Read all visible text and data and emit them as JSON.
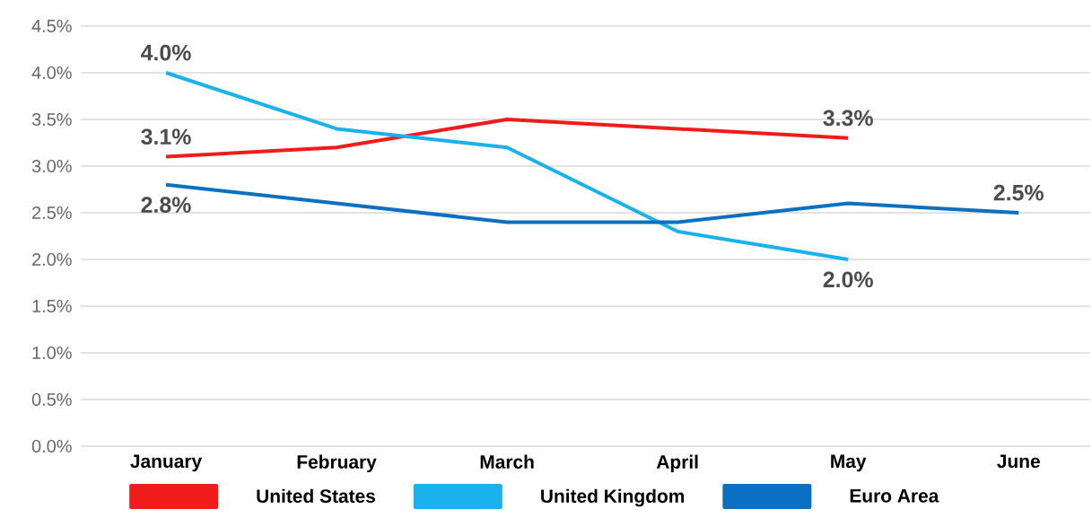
{
  "chart_data": {
    "type": "line",
    "categories": [
      "January",
      "February",
      "March",
      "April",
      "May",
      "June"
    ],
    "series": [
      {
        "name": "United States",
        "color": "#f01c1c",
        "values": [
          3.1,
          3.2,
          3.5,
          3.4,
          3.3,
          null
        ],
        "value_labels": [
          "3.1%",
          null,
          null,
          null,
          "3.3%",
          null
        ]
      },
      {
        "name": "United Kingdom",
        "color": "#1ab2ec",
        "values": [
          4.0,
          3.4,
          3.2,
          2.3,
          2.0,
          null
        ],
        "value_labels": [
          "4.0%",
          null,
          null,
          null,
          "2.0%",
          null
        ]
      },
      {
        "name": "Euro Area",
        "color": "#0b6fc2",
        "values": [
          2.8,
          2.6,
          2.4,
          2.4,
          2.6,
          2.5
        ],
        "value_labels": [
          "2.8%",
          null,
          null,
          null,
          null,
          "2.5%"
        ]
      }
    ],
    "ylim": [
      0,
      4.5
    ],
    "yticks": [
      {
        "value": 0,
        "label": "0.0%"
      },
      {
        "value": 0.5,
        "label": "0.5%"
      },
      {
        "value": 1.0,
        "label": "1.0%"
      },
      {
        "value": 1.5,
        "label": "1.5%"
      },
      {
        "value": 2.0,
        "label": "2.0%"
      },
      {
        "value": 2.5,
        "label": "2.5%"
      },
      {
        "value": 3.0,
        "label": "3.0%"
      },
      {
        "value": 3.5,
        "label": "3.5%"
      },
      {
        "value": 4.0,
        "label": "4.0%"
      },
      {
        "value": 4.5,
        "label": "4.5%"
      }
    ],
    "grid": "y",
    "legend": "bottom",
    "marker": "none",
    "line_style": "solid"
  }
}
